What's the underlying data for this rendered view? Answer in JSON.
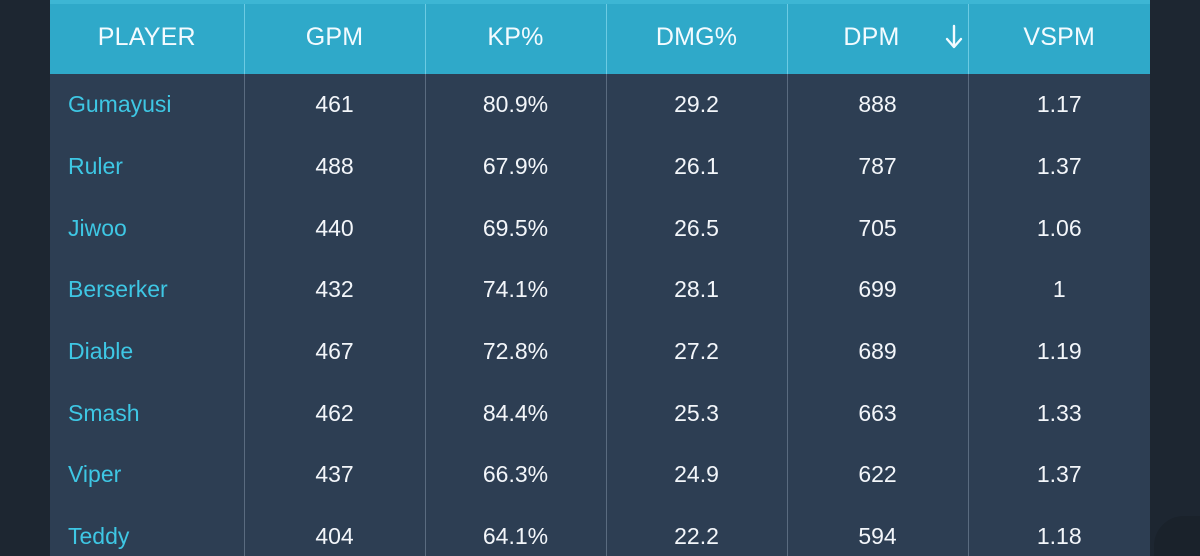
{
  "table": {
    "columns": [
      "PLAYER",
      "GPM",
      "KP%",
      "DMG%",
      "DPM",
      "VSPM"
    ],
    "sorted_column_index": 4,
    "sort_direction": "descending",
    "rows": [
      {
        "player": "Gumayusi",
        "gpm": "461",
        "kp": "80.9%",
        "dmg": "29.2",
        "dpm": "888",
        "vspm": "1.17"
      },
      {
        "player": "Ruler",
        "gpm": "488",
        "kp": "67.9%",
        "dmg": "26.1",
        "dpm": "787",
        "vspm": "1.37"
      },
      {
        "player": "Jiwoo",
        "gpm": "440",
        "kp": "69.5%",
        "dmg": "26.5",
        "dpm": "705",
        "vspm": "1.06"
      },
      {
        "player": "Berserker",
        "gpm": "432",
        "kp": "74.1%",
        "dmg": "28.1",
        "dpm": "699",
        "vspm": "1"
      },
      {
        "player": "Diable",
        "gpm": "467",
        "kp": "72.8%",
        "dmg": "27.2",
        "dpm": "689",
        "vspm": "1.19"
      },
      {
        "player": "Smash",
        "gpm": "462",
        "kp": "84.4%",
        "dmg": "25.3",
        "dpm": "663",
        "vspm": "1.33"
      },
      {
        "player": "Viper",
        "gpm": "437",
        "kp": "66.3%",
        "dmg": "24.9",
        "dpm": "622",
        "vspm": "1.37"
      },
      {
        "player": "Teddy",
        "gpm": "404",
        "kp": "64.1%",
        "dmg": "22.2",
        "dpm": "594",
        "vspm": "1.18"
      }
    ]
  },
  "icons": {
    "sort": "arrow-down-icon"
  },
  "colors": {
    "header_bg": "#2fa9c9",
    "body_bg": "#2d3e53",
    "player_link": "#3ec7e4",
    "text": "#f3f6fa"
  }
}
